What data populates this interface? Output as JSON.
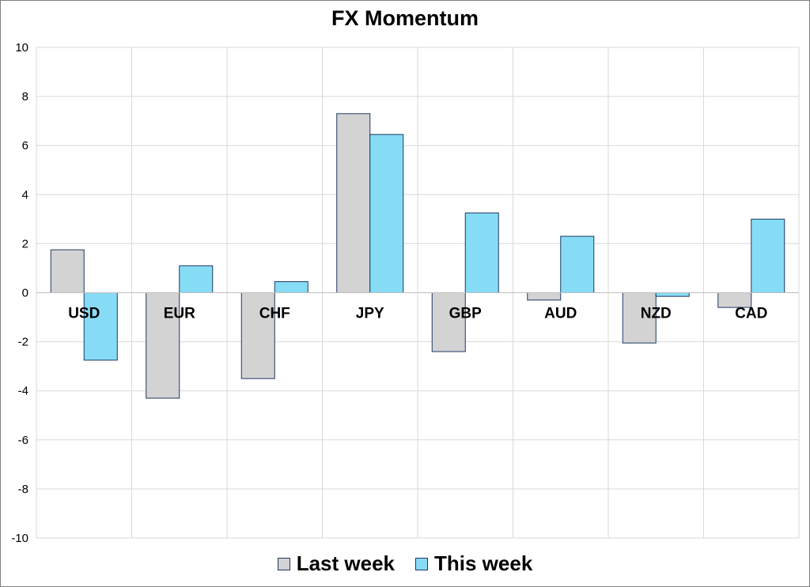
{
  "chart_data": {
    "type": "bar",
    "title": "FX Momentum",
    "categories": [
      "USD",
      "EUR",
      "CHF",
      "JPY",
      "GBP",
      "AUD",
      "NZD",
      "CAD"
    ],
    "series": [
      {
        "name": "Last week",
        "color": "#d3d3d3",
        "values": [
          1.75,
          -4.3,
          -3.5,
          7.3,
          -2.4,
          -0.3,
          -2.05,
          -0.6
        ]
      },
      {
        "name": "This week",
        "color": "#87dcf5",
        "values": [
          -2.75,
          1.1,
          0.45,
          6.45,
          3.25,
          2.3,
          -0.15,
          3.0
        ]
      }
    ],
    "ylim": [
      -10,
      10
    ],
    "yticks": [
      10,
      8,
      6,
      4,
      2,
      0,
      -2,
      -4,
      -6,
      -8,
      -10
    ],
    "grid": true,
    "legend_position": "bottom",
    "bar_border_color": "#1f3864"
  }
}
